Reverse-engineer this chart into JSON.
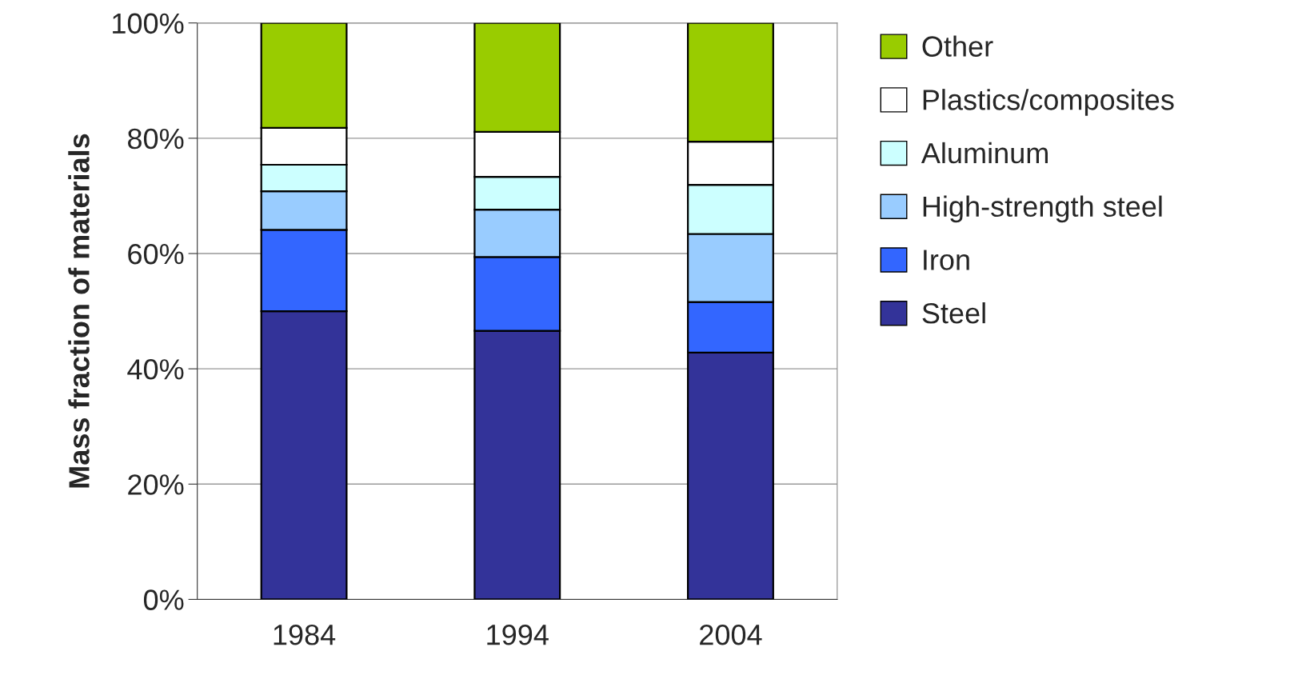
{
  "chart_data": {
    "type": "bar",
    "stacked": true,
    "ylabel": "Mass fraction of materials",
    "categories": [
      "1984",
      "1994",
      "2004"
    ],
    "series": [
      {
        "name": "Steel",
        "color": "#333399",
        "values": [
          50.0,
          46.6,
          42.8
        ]
      },
      {
        "name": "Iron",
        "color": "#3366ff",
        "values": [
          14.1,
          12.8,
          8.8
        ]
      },
      {
        "name": "High-strength steel",
        "color": "#99ccff",
        "values": [
          6.7,
          8.2,
          11.8
        ]
      },
      {
        "name": "Aluminum",
        "color": "#ccffff",
        "values": [
          4.6,
          5.7,
          8.5
        ]
      },
      {
        "name": "Plastics/composites",
        "color": "#ffffff",
        "values": [
          6.4,
          7.8,
          7.5
        ]
      },
      {
        "name": "Other",
        "color": "#99cc00",
        "values": [
          18.2,
          18.9,
          20.6
        ]
      }
    ],
    "ylim": [
      0,
      100
    ],
    "yticks": [
      {
        "value": 0,
        "label": "0%"
      },
      {
        "value": 20,
        "label": "20%"
      },
      {
        "value": 40,
        "label": "40%"
      },
      {
        "value": 60,
        "label": "60%"
      },
      {
        "value": 80,
        "label": "80%"
      },
      {
        "value": 100,
        "label": "100%"
      }
    ],
    "grid": "y",
    "legend": "right"
  }
}
